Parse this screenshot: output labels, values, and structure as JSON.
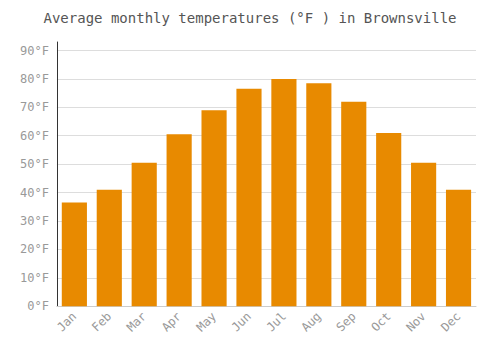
{
  "chart_data": {
    "type": "bar",
    "title": "Average monthly temperatures (°F ) in Brownsville",
    "categories": [
      "Jan",
      "Feb",
      "Mar",
      "Apr",
      "May",
      "Jun",
      "Jul",
      "Aug",
      "Sep",
      "Oct",
      "Nov",
      "Dec"
    ],
    "values": [
      36.5,
      41,
      50.5,
      60.5,
      69,
      76.5,
      80,
      78.5,
      72,
      61,
      50.5,
      41
    ],
    "color": "#E88A00",
    "ylim": [
      0,
      93
    ],
    "yticks": [
      {
        "value": 0,
        "label": "0°F"
      },
      {
        "value": 10,
        "label": "10°F"
      },
      {
        "value": 20,
        "label": "20°F"
      },
      {
        "value": 30,
        "label": "30°F"
      },
      {
        "value": 40,
        "label": "40°F"
      },
      {
        "value": 50,
        "label": "50°F"
      },
      {
        "value": 60,
        "label": "60°F"
      },
      {
        "value": 70,
        "label": "70°F"
      },
      {
        "value": 80,
        "label": "80°F"
      },
      {
        "value": 90,
        "label": "90°F"
      }
    ],
    "grid": true
  }
}
